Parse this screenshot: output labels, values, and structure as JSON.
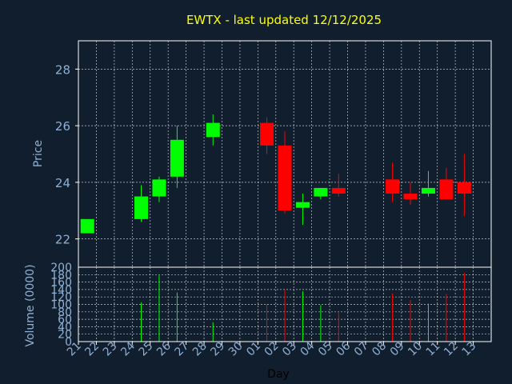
{
  "title": "EWTX - last updated 12/12/2025",
  "colors": {
    "background": "#111e2d",
    "title": "#ffff00",
    "axis_text": "#8fb0d4",
    "frame": "#ffffff",
    "grid": "#ffffff",
    "up": "#00ff00",
    "down": "#ff0000"
  },
  "chart_data": [
    {
      "type": "candlestick",
      "panel": "price",
      "ylabel": "Price",
      "ylim": [
        21.0,
        29.0
      ],
      "yticks": [
        22,
        24,
        26,
        28
      ],
      "grid": true,
      "x_categories": [
        "21",
        "22",
        "23",
        "24",
        "25",
        "26",
        "27",
        "28",
        "29",
        "30",
        "01",
        "02",
        "03",
        "04",
        "05",
        "06",
        "07",
        "08",
        "09",
        "10",
        "11",
        "12",
        "13"
      ],
      "candles": [
        {
          "x": "21",
          "open": 22.2,
          "high": 22.7,
          "low": 22.2,
          "close": 22.7
        },
        {
          "x": "24",
          "open": 22.7,
          "high": 23.9,
          "low": 22.6,
          "close": 23.5
        },
        {
          "x": "25",
          "open": 23.5,
          "high": 24.2,
          "low": 23.3,
          "close": 24.1
        },
        {
          "x": "26",
          "open": 24.2,
          "high": 26.0,
          "low": 23.8,
          "close": 25.5
        },
        {
          "x": "28",
          "open": 25.6,
          "high": 26.4,
          "low": 25.3,
          "close": 26.1
        },
        {
          "x": "01",
          "open": 26.1,
          "high": 26.3,
          "low": 25.0,
          "close": 25.3
        },
        {
          "x": "02",
          "open": 25.3,
          "high": 25.8,
          "low": 22.9,
          "close": 23.0
        },
        {
          "x": "03",
          "open": 23.1,
          "high": 23.6,
          "low": 22.5,
          "close": 23.3
        },
        {
          "x": "04",
          "open": 23.5,
          "high": 23.8,
          "low": 23.4,
          "close": 23.8
        },
        {
          "x": "05",
          "open": 23.8,
          "high": 24.3,
          "low": 23.5,
          "close": 23.6
        },
        {
          "x": "08",
          "open": 24.1,
          "high": 24.7,
          "low": 23.3,
          "close": 23.6
        },
        {
          "x": "09",
          "open": 23.6,
          "high": 24.0,
          "low": 23.2,
          "close": 23.4
        },
        {
          "x": "10",
          "open": 23.6,
          "high": 24.4,
          "low": 23.5,
          "close": 23.8
        },
        {
          "x": "11",
          "open": 24.1,
          "high": 24.5,
          "low": 23.4,
          "close": 23.4
        },
        {
          "x": "12",
          "open": 24.0,
          "high": 25.0,
          "low": 22.8,
          "close": 23.6
        }
      ]
    },
    {
      "type": "bar",
      "panel": "volume",
      "xlabel": "Day",
      "ylabel": "Volume (0000)",
      "ylim": [
        0,
        200
      ],
      "yticks": [
        0,
        20,
        40,
        60,
        80,
        100,
        120,
        140,
        160,
        180,
        200
      ],
      "grid": true,
      "x_categories": [
        "21",
        "22",
        "23",
        "24",
        "25",
        "26",
        "27",
        "28",
        "29",
        "30",
        "01",
        "02",
        "03",
        "04",
        "05",
        "06",
        "07",
        "08",
        "09",
        "10",
        "11",
        "12",
        "13"
      ],
      "bars": [
        {
          "x": "24",
          "value": 105,
          "direction": "up"
        },
        {
          "x": "25",
          "value": 178,
          "direction": "up"
        },
        {
          "x": "26",
          "value": 132,
          "direction": "up"
        },
        {
          "x": "28",
          "value": 52,
          "direction": "up"
        },
        {
          "x": "01",
          "value": 100,
          "direction": "down"
        },
        {
          "x": "02",
          "value": 140,
          "direction": "down"
        },
        {
          "x": "03",
          "value": 135,
          "direction": "up"
        },
        {
          "x": "04",
          "value": 98,
          "direction": "up"
        },
        {
          "x": "05",
          "value": 78,
          "direction": "down"
        },
        {
          "x": "08",
          "value": 130,
          "direction": "down"
        },
        {
          "x": "09",
          "value": 112,
          "direction": "down"
        },
        {
          "x": "10",
          "value": 102,
          "direction": "up"
        },
        {
          "x": "11",
          "value": 128,
          "direction": "down"
        },
        {
          "x": "12",
          "value": 185,
          "direction": "down"
        }
      ]
    }
  ]
}
